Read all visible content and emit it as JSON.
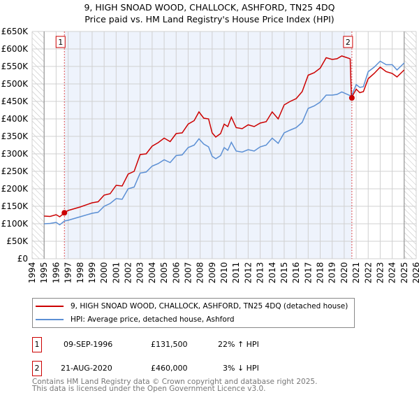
{
  "chart_data": {
    "type": "line",
    "title": "9, HIGH SNOAD WOOD, CHALLOCK, ASHFORD, TN25 4DQ",
    "subtitle": "Price paid vs. HM Land Registry's House Price Index (HPI)",
    "xlim": [
      1994,
      2026
    ],
    "ylim": [
      0,
      650000
    ],
    "x_ticks": [
      "1994",
      "1995",
      "1996",
      "1997",
      "1998",
      "1999",
      "2000",
      "2001",
      "2002",
      "2003",
      "2004",
      "2005",
      "2006",
      "2007",
      "2008",
      "2009",
      "2010",
      "2011",
      "2012",
      "2013",
      "2014",
      "2015",
      "2016",
      "2017",
      "2018",
      "2019",
      "2020",
      "2021",
      "2022",
      "2023",
      "2024",
      "2025",
      "2026"
    ],
    "y_ticks": [
      {
        "v": 0,
        "l": "£0"
      },
      {
        "v": 50000,
        "l": "£50K"
      },
      {
        "v": 100000,
        "l": "£100K"
      },
      {
        "v": 150000,
        "l": "£150K"
      },
      {
        "v": 200000,
        "l": "£200K"
      },
      {
        "v": 250000,
        "l": "£250K"
      },
      {
        "v": 300000,
        "l": "£300K"
      },
      {
        "v": 350000,
        "l": "£350K"
      },
      {
        "v": 400000,
        "l": "£400K"
      },
      {
        "v": 450000,
        "l": "£450K"
      },
      {
        "v": 500000,
        "l": "£500K"
      },
      {
        "v": 550000,
        "l": "£550K"
      },
      {
        "v": 600000,
        "l": "£600K"
      },
      {
        "v": 650000,
        "l": "£650K"
      }
    ],
    "grid": true,
    "series": [
      {
        "name": "9, HIGH SNOAD WOOD, CHALLOCK, ASHFORD, TN25 4DQ (detached house)",
        "color": "#cc0000",
        "points": [
          [
            1995,
            122
          ],
          [
            1995.5,
            121
          ],
          [
            1996,
            126
          ],
          [
            1996.3,
            120
          ],
          [
            1996.7,
            131.5
          ],
          [
            1997,
            138
          ],
          [
            1998,
            148
          ],
          [
            1999,
            160
          ],
          [
            1999.5,
            163
          ],
          [
            2000,
            182
          ],
          [
            2000.5,
            186
          ],
          [
            2001,
            210
          ],
          [
            2001.5,
            208
          ],
          [
            2002,
            242
          ],
          [
            2002.5,
            250
          ],
          [
            2003,
            298
          ],
          [
            2003.5,
            300
          ],
          [
            2004,
            322
          ],
          [
            2004.5,
            332
          ],
          [
            2005,
            345
          ],
          [
            2005.5,
            335
          ],
          [
            2006,
            358
          ],
          [
            2006.5,
            360
          ],
          [
            2007,
            385
          ],
          [
            2007.5,
            395
          ],
          [
            2007.9,
            420
          ],
          [
            2008.3,
            402
          ],
          [
            2008.7,
            400
          ],
          [
            2009,
            360
          ],
          [
            2009.3,
            348
          ],
          [
            2009.7,
            358
          ],
          [
            2010,
            385
          ],
          [
            2010.3,
            378
          ],
          [
            2010.6,
            405
          ],
          [
            2011,
            375
          ],
          [
            2011.5,
            372
          ],
          [
            2012,
            383
          ],
          [
            2012.5,
            378
          ],
          [
            2013,
            388
          ],
          [
            2013.5,
            392
          ],
          [
            2014,
            420
          ],
          [
            2014.5,
            400
          ],
          [
            2015,
            440
          ],
          [
            2015.5,
            450
          ],
          [
            2016,
            458
          ],
          [
            2016.5,
            478
          ],
          [
            2017,
            525
          ],
          [
            2017.5,
            532
          ],
          [
            2018,
            545
          ],
          [
            2018.5,
            575
          ],
          [
            2019,
            570
          ],
          [
            2019.4,
            572
          ],
          [
            2019.8,
            580
          ],
          [
            2020.5,
            572
          ],
          [
            2020.6,
            460
          ],
          [
            2021,
            485
          ],
          [
            2021.3,
            475
          ],
          [
            2021.6,
            478
          ],
          [
            2022,
            515
          ],
          [
            2022.5,
            530
          ],
          [
            2023,
            548
          ],
          [
            2023.5,
            535
          ],
          [
            2024,
            530
          ],
          [
            2024.4,
            520
          ],
          [
            2025,
            540
          ]
        ]
      },
      {
        "name": "HPI: Average price, detached house, Ashford",
        "color": "#5b8fd4",
        "points": [
          [
            1995,
            100
          ],
          [
            1995.5,
            101
          ],
          [
            1996,
            104
          ],
          [
            1996.3,
            97
          ],
          [
            1996.7,
            108
          ],
          [
            1997,
            110
          ],
          [
            1998,
            120
          ],
          [
            1999,
            130
          ],
          [
            1999.5,
            133
          ],
          [
            2000,
            150
          ],
          [
            2000.5,
            158
          ],
          [
            2001,
            172
          ],
          [
            2001.5,
            170
          ],
          [
            2002,
            200
          ],
          [
            2002.5,
            205
          ],
          [
            2003,
            245
          ],
          [
            2003.5,
            248
          ],
          [
            2004,
            265
          ],
          [
            2004.5,
            272
          ],
          [
            2005,
            283
          ],
          [
            2005.5,
            275
          ],
          [
            2006,
            295
          ],
          [
            2006.5,
            297
          ],
          [
            2007,
            318
          ],
          [
            2007.5,
            325
          ],
          [
            2007.9,
            343
          ],
          [
            2008.3,
            328
          ],
          [
            2008.7,
            320
          ],
          [
            2009,
            293
          ],
          [
            2009.3,
            286
          ],
          [
            2009.7,
            295
          ],
          [
            2010,
            318
          ],
          [
            2010.3,
            310
          ],
          [
            2010.6,
            333
          ],
          [
            2011,
            308
          ],
          [
            2011.5,
            305
          ],
          [
            2012,
            312
          ],
          [
            2012.5,
            308
          ],
          [
            2013,
            320
          ],
          [
            2013.5,
            325
          ],
          [
            2014,
            345
          ],
          [
            2014.5,
            330
          ],
          [
            2015,
            360
          ],
          [
            2015.5,
            368
          ],
          [
            2016,
            375
          ],
          [
            2016.5,
            390
          ],
          [
            2017,
            430
          ],
          [
            2017.5,
            437
          ],
          [
            2018,
            448
          ],
          [
            2018.5,
            468
          ],
          [
            2019,
            468
          ],
          [
            2019.4,
            470
          ],
          [
            2019.8,
            477
          ],
          [
            2020.6,
            465
          ],
          [
            2021,
            498
          ],
          [
            2021.3,
            490
          ],
          [
            2021.6,
            492
          ],
          [
            2022,
            535
          ],
          [
            2022.5,
            548
          ],
          [
            2023,
            565
          ],
          [
            2023.5,
            555
          ],
          [
            2024,
            555
          ],
          [
            2024.4,
            540
          ],
          [
            2025,
            560
          ]
        ]
      }
    ],
    "sales": [
      {
        "n": "1",
        "x": 1996.69,
        "price": 131500
      },
      {
        "n": "2",
        "x": 2020.64,
        "price": 460000
      }
    ],
    "hatched": [
      [
        1994,
        1995
      ],
      [
        2025,
        2026
      ]
    ]
  },
  "legend": {
    "red": "9, HIGH SNOAD WOOD, CHALLOCK, ASHFORD, TN25 4DQ (detached house)",
    "blue": "HPI: Average price, detached house, Ashford"
  },
  "sales_table": [
    {
      "n": "1",
      "date": "09-SEP-1996",
      "price": "£131,500",
      "hpi": "22% ↑ HPI"
    },
    {
      "n": "2",
      "date": "21-AUG-2020",
      "price": "£460,000",
      "hpi": "3% ↓ HPI"
    }
  ],
  "footer": [
    "Contains HM Land Registry data © Crown copyright and database right 2025.",
    "This data is licensed under the Open Government Licence v3.0."
  ]
}
